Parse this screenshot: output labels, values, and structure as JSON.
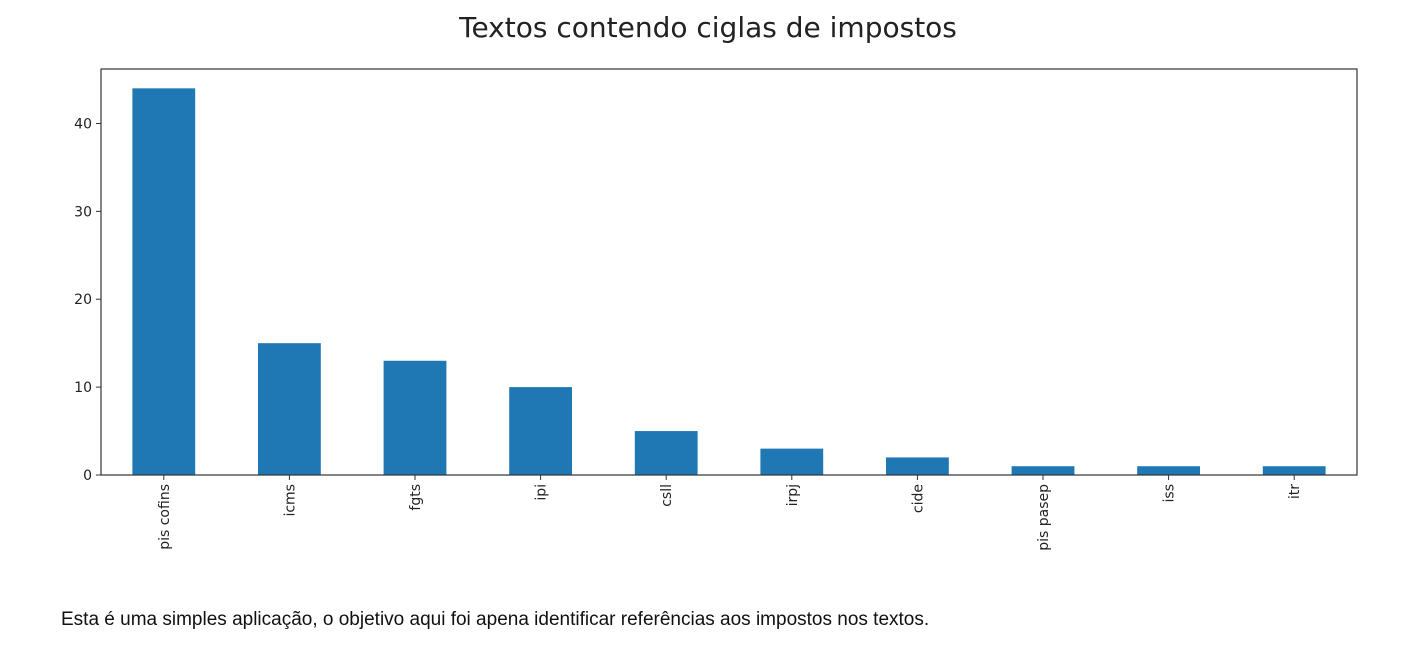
{
  "chart_data": {
    "type": "bar",
    "title": "Textos contendo ciglas de impostos",
    "xlabel": "",
    "ylabel": "",
    "categories": [
      "pis cofins",
      "icms",
      "fgts",
      "ipi",
      "csll",
      "irpj",
      "cide",
      "pis pasep",
      "iss",
      "itr"
    ],
    "values": [
      44,
      15,
      13,
      10,
      5,
      3,
      2,
      1,
      1,
      1
    ],
    "ylim": [
      0,
      46.2
    ],
    "yticks": [
      0,
      10,
      20,
      30,
      40
    ],
    "grid": false,
    "legend": "none",
    "bar_color": "#1f77b4"
  },
  "caption": "Esta é uma simples aplicação, o objetivo aqui foi apena identificar referências aos impostos nos textos."
}
